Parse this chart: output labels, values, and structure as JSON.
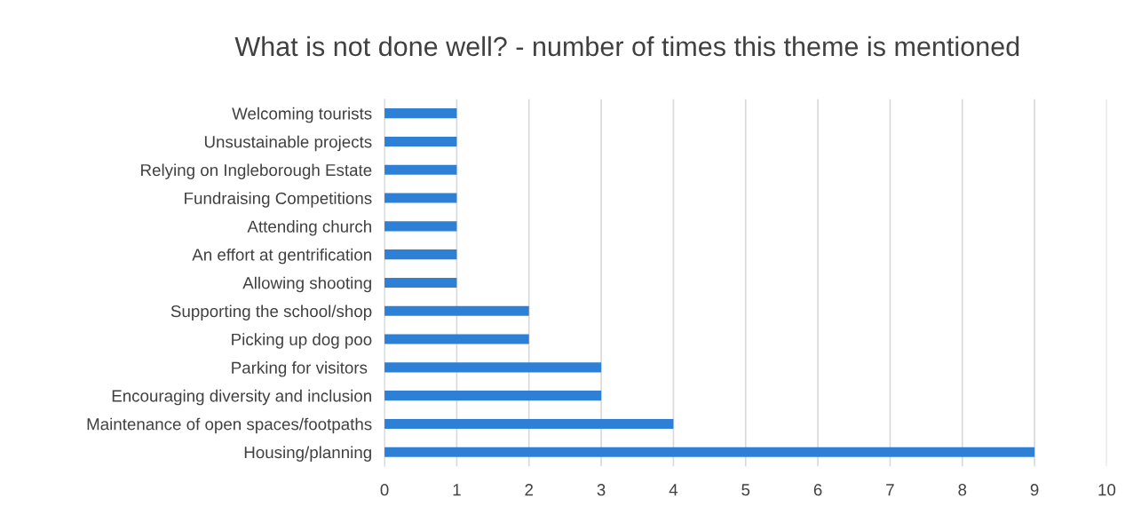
{
  "chart_data": {
    "type": "bar",
    "orientation": "horizontal",
    "title": "What is not done well? - number of times this theme is mentioned",
    "categories": [
      "Welcoming tourists",
      "Unsustainable projects",
      "Relying on Ingleborough Estate",
      "Fundraising Competitions",
      "Attending church",
      "An effort at gentrification",
      "Allowing shooting",
      "Supporting the school/shop",
      "Picking up dog poo",
      "Parking for visitors ",
      "Encouraging diversity and inclusion",
      "Maintenance of open spaces/footpaths",
      "Housing/planning"
    ],
    "values": [
      1,
      1,
      1,
      1,
      1,
      1,
      1,
      2,
      2,
      3,
      3,
      4,
      9
    ],
    "color": "#2e7fd6",
    "xlim": [
      0,
      10
    ],
    "xticks": [
      0,
      1,
      2,
      3,
      4,
      5,
      6,
      7,
      8,
      9,
      10
    ],
    "grid": "x",
    "legend": false
  }
}
